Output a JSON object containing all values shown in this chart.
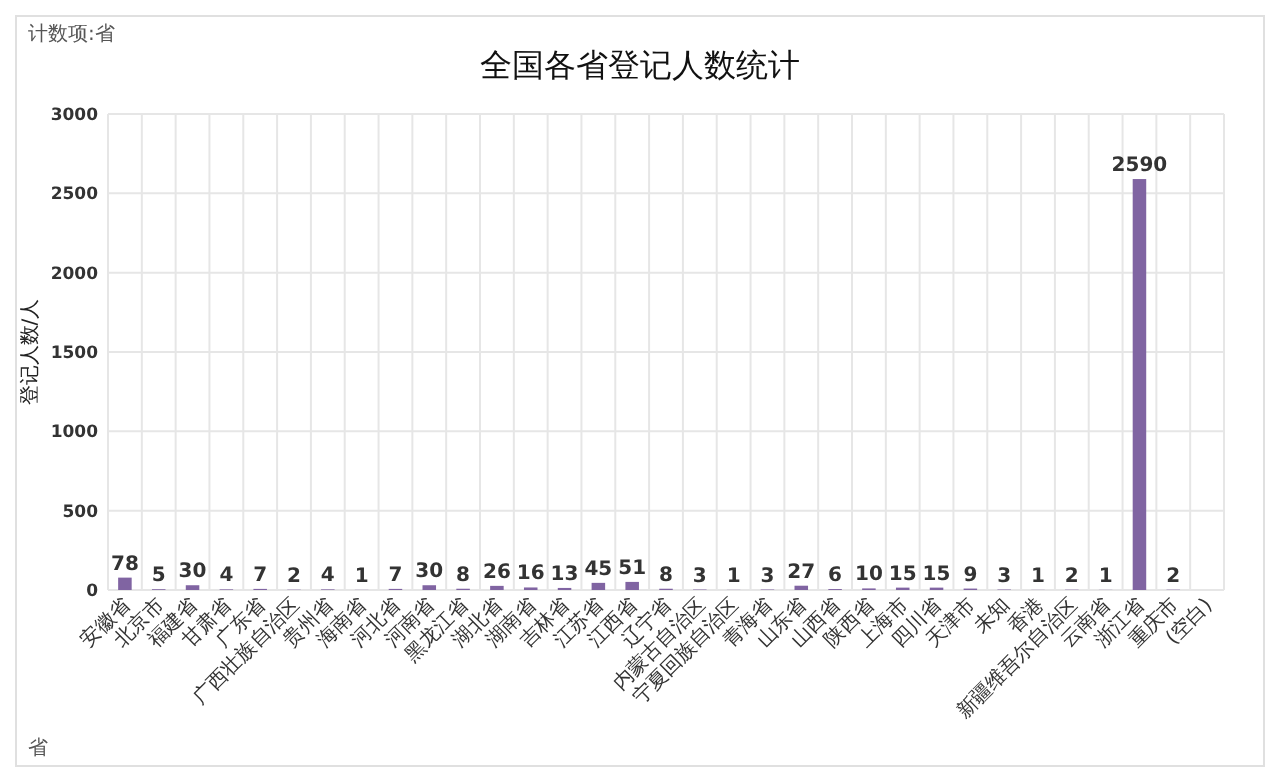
{
  "chart_data": {
    "type": "bar",
    "title": "全国各省登记人数统计",
    "ylabel": "登记人数/人",
    "categories": [
      "安徽省",
      "北京市",
      "福建省",
      "甘肃省",
      "广东省",
      "广西壮族自治区",
      "贵州省",
      "海南省",
      "河北省",
      "河南省",
      "黑龙江省",
      "湖北省",
      "湖南省",
      "吉林省",
      "江苏省",
      "江西省",
      "辽宁省",
      "内蒙古自治区",
      "宁夏回族自治区",
      "青海省",
      "山东省",
      "山西省",
      "陕西省",
      "上海市",
      "四川省",
      "天津市",
      "未知",
      "香港",
      "新疆维吾尔自治区",
      "云南省",
      "浙江省",
      "重庆市",
      "(空白)"
    ],
    "values": [
      78,
      5,
      30,
      4,
      7,
      2,
      4,
      1,
      7,
      30,
      8,
      26,
      16,
      13,
      45,
      51,
      8,
      3,
      1,
      3,
      27,
      6,
      10,
      15,
      15,
      9,
      3,
      1,
      2,
      1,
      2590,
      2,
      null
    ],
    "color": "#8064a2",
    "ylim": [
      0,
      3000
    ],
    "yticks": [
      0,
      500,
      1000,
      1500,
      2000,
      2500,
      3000
    ],
    "grid": true,
    "data_labels": true,
    "annotations": [
      "计数项:省",
      "省"
    ]
  }
}
